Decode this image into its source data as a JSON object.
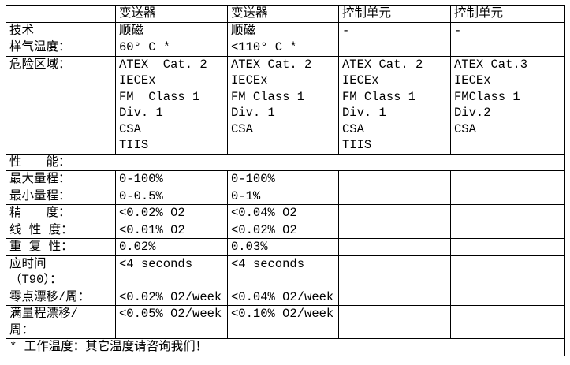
{
  "table": {
    "columns": [
      "",
      "变送器",
      "变送器",
      "控制单元",
      "控制单元"
    ],
    "rows": [
      {
        "label": "技术",
        "values": [
          "顺磁",
          "顺磁",
          "-",
          "-"
        ]
      },
      {
        "label": "样气温度：",
        "values": [
          "60° C *",
          "<110° C *",
          "",
          ""
        ]
      },
      {
        "label": "危险区域：",
        "values": [
          "ATEX  Cat. 2\nIECEx\nFM  Class 1\nDiv. 1\nCSA\nTIIS",
          "ATEX Cat. 2\nIECEx\nFM Class 1\nDiv. 1\nCSA",
          "ATEX Cat. 2\nIECEx\nFM Class 1\nDiv. 1\nCSA\nTIIS",
          "ATEX Cat.3\nIECEx\nFMClass 1\nDiv.2\nCSA"
        ]
      },
      {
        "label": "最大量程：",
        "values": [
          "0-100%",
          "0-100%",
          "",
          ""
        ]
      },
      {
        "label": "最小量程：",
        "values": [
          "0-0.5%",
          "0-1%",
          "",
          ""
        ]
      },
      {
        "label": "精　　度：",
        "values": [
          "<0.02% O2",
          "<0.04% O2",
          "",
          ""
        ]
      },
      {
        "label": "线 性 度：",
        "values": [
          "<0.01% O2",
          "<0.02% O2",
          "",
          ""
        ]
      },
      {
        "label": "重 复 性：",
        "values": [
          "0.02%",
          "0.03%",
          "",
          ""
        ]
      },
      {
        "label": "应时间\n（T90）：",
        "values": [
          "<4 seconds",
          "<4 seconds",
          "",
          ""
        ]
      },
      {
        "label": "零点漂移/周：",
        "values": [
          "<0.02% O2/week",
          "<0.04% O2/week",
          "",
          ""
        ]
      },
      {
        "label": "满量程漂移/\n周：",
        "values": [
          "<0.05% O2/week",
          "<0.10% O2/week",
          "",
          ""
        ]
      }
    ],
    "section_header": "性　　能：",
    "footnote": "* 工作温度：其它温度请咨询我们！"
  }
}
